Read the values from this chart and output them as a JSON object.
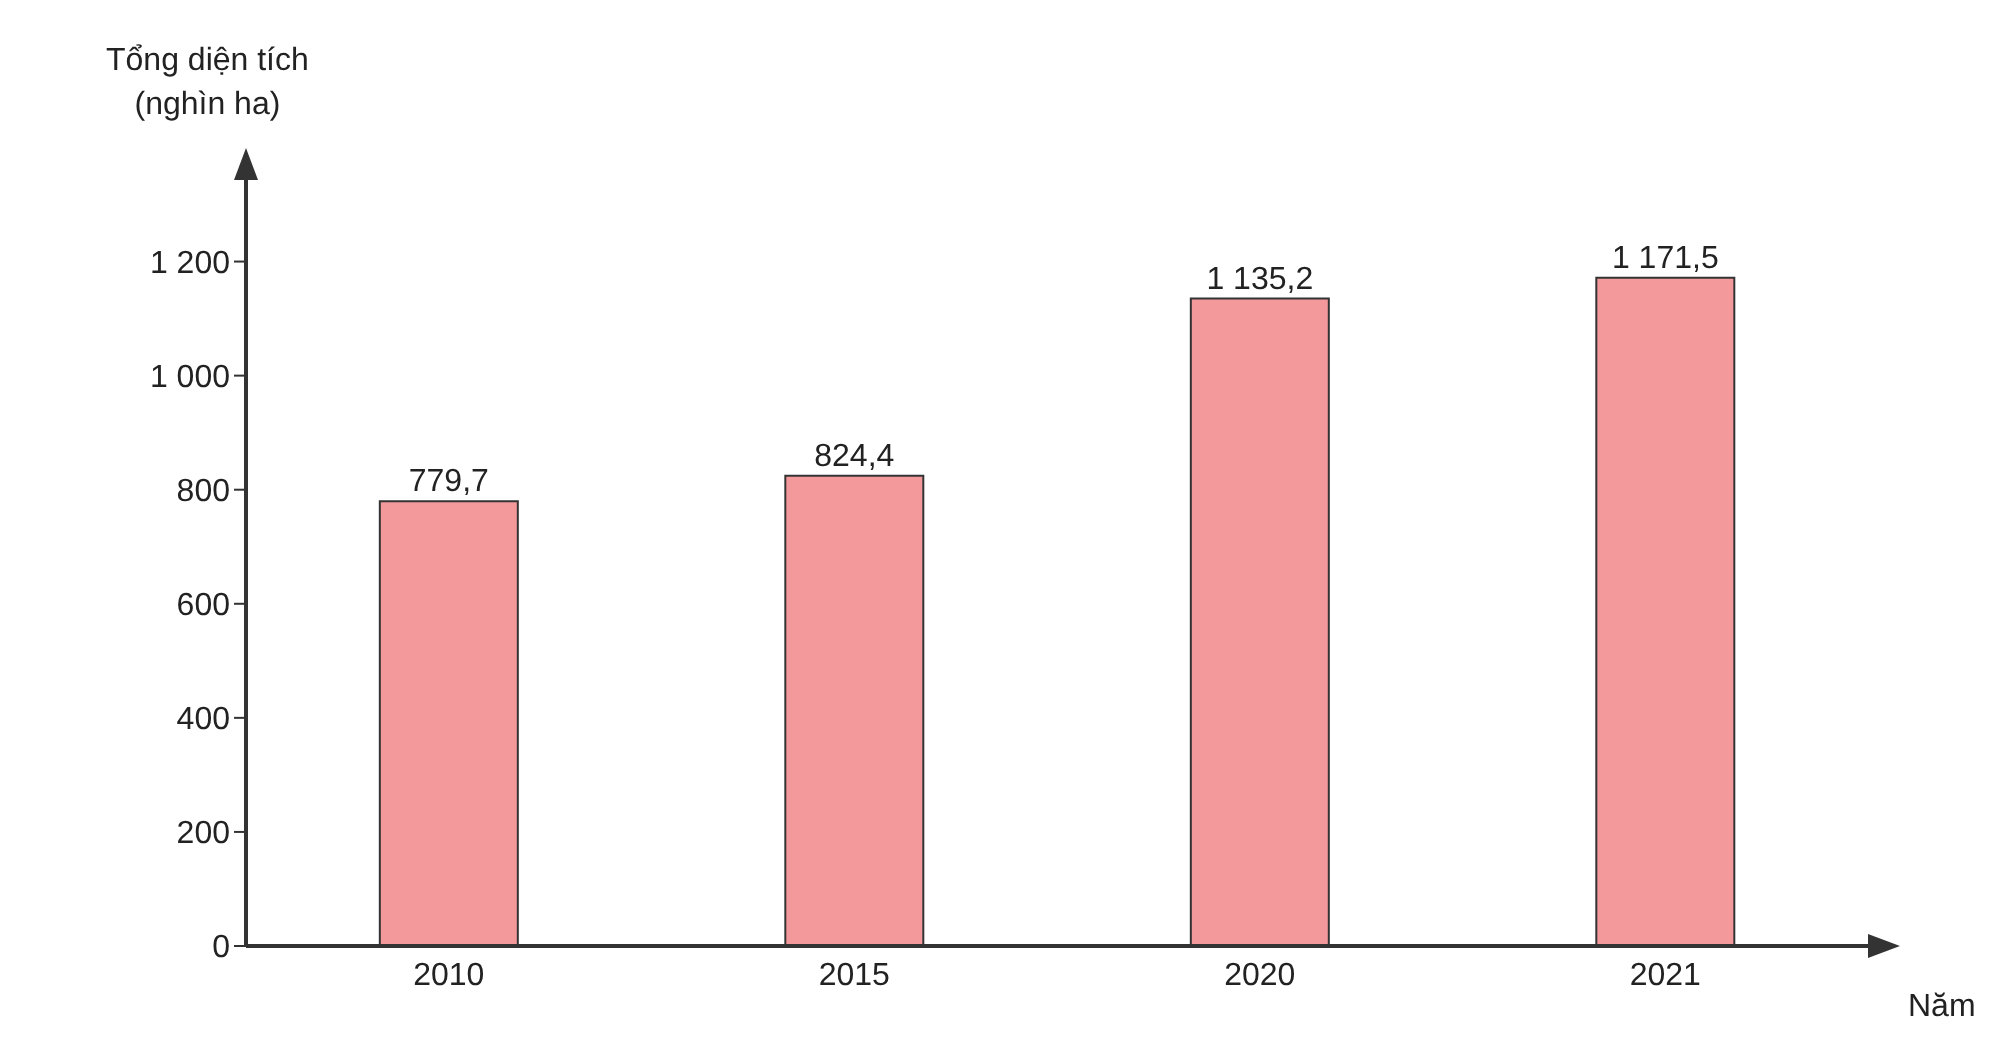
{
  "chart_data": {
    "type": "bar",
    "ylabel": "Tổng diện tích\n(nghìn ha)",
    "xlabel": "Năm",
    "categories": [
      "2010",
      "2015",
      "2020",
      "2021"
    ],
    "values": [
      779.7,
      824.4,
      1135.2,
      1171.5
    ],
    "value_labels": [
      "779,7",
      "824,4",
      "1 135,2",
      "1 171,5"
    ],
    "color": "#f4999b",
    "ylim": [
      0,
      1350
    ],
    "yticks": [
      0,
      200,
      400,
      600,
      800,
      {
        "value": 1000,
        "label": "1 000"
      },
      {
        "value": 1200,
        "label": "1 200"
      }
    ],
    "grid": false,
    "legend": false
  }
}
